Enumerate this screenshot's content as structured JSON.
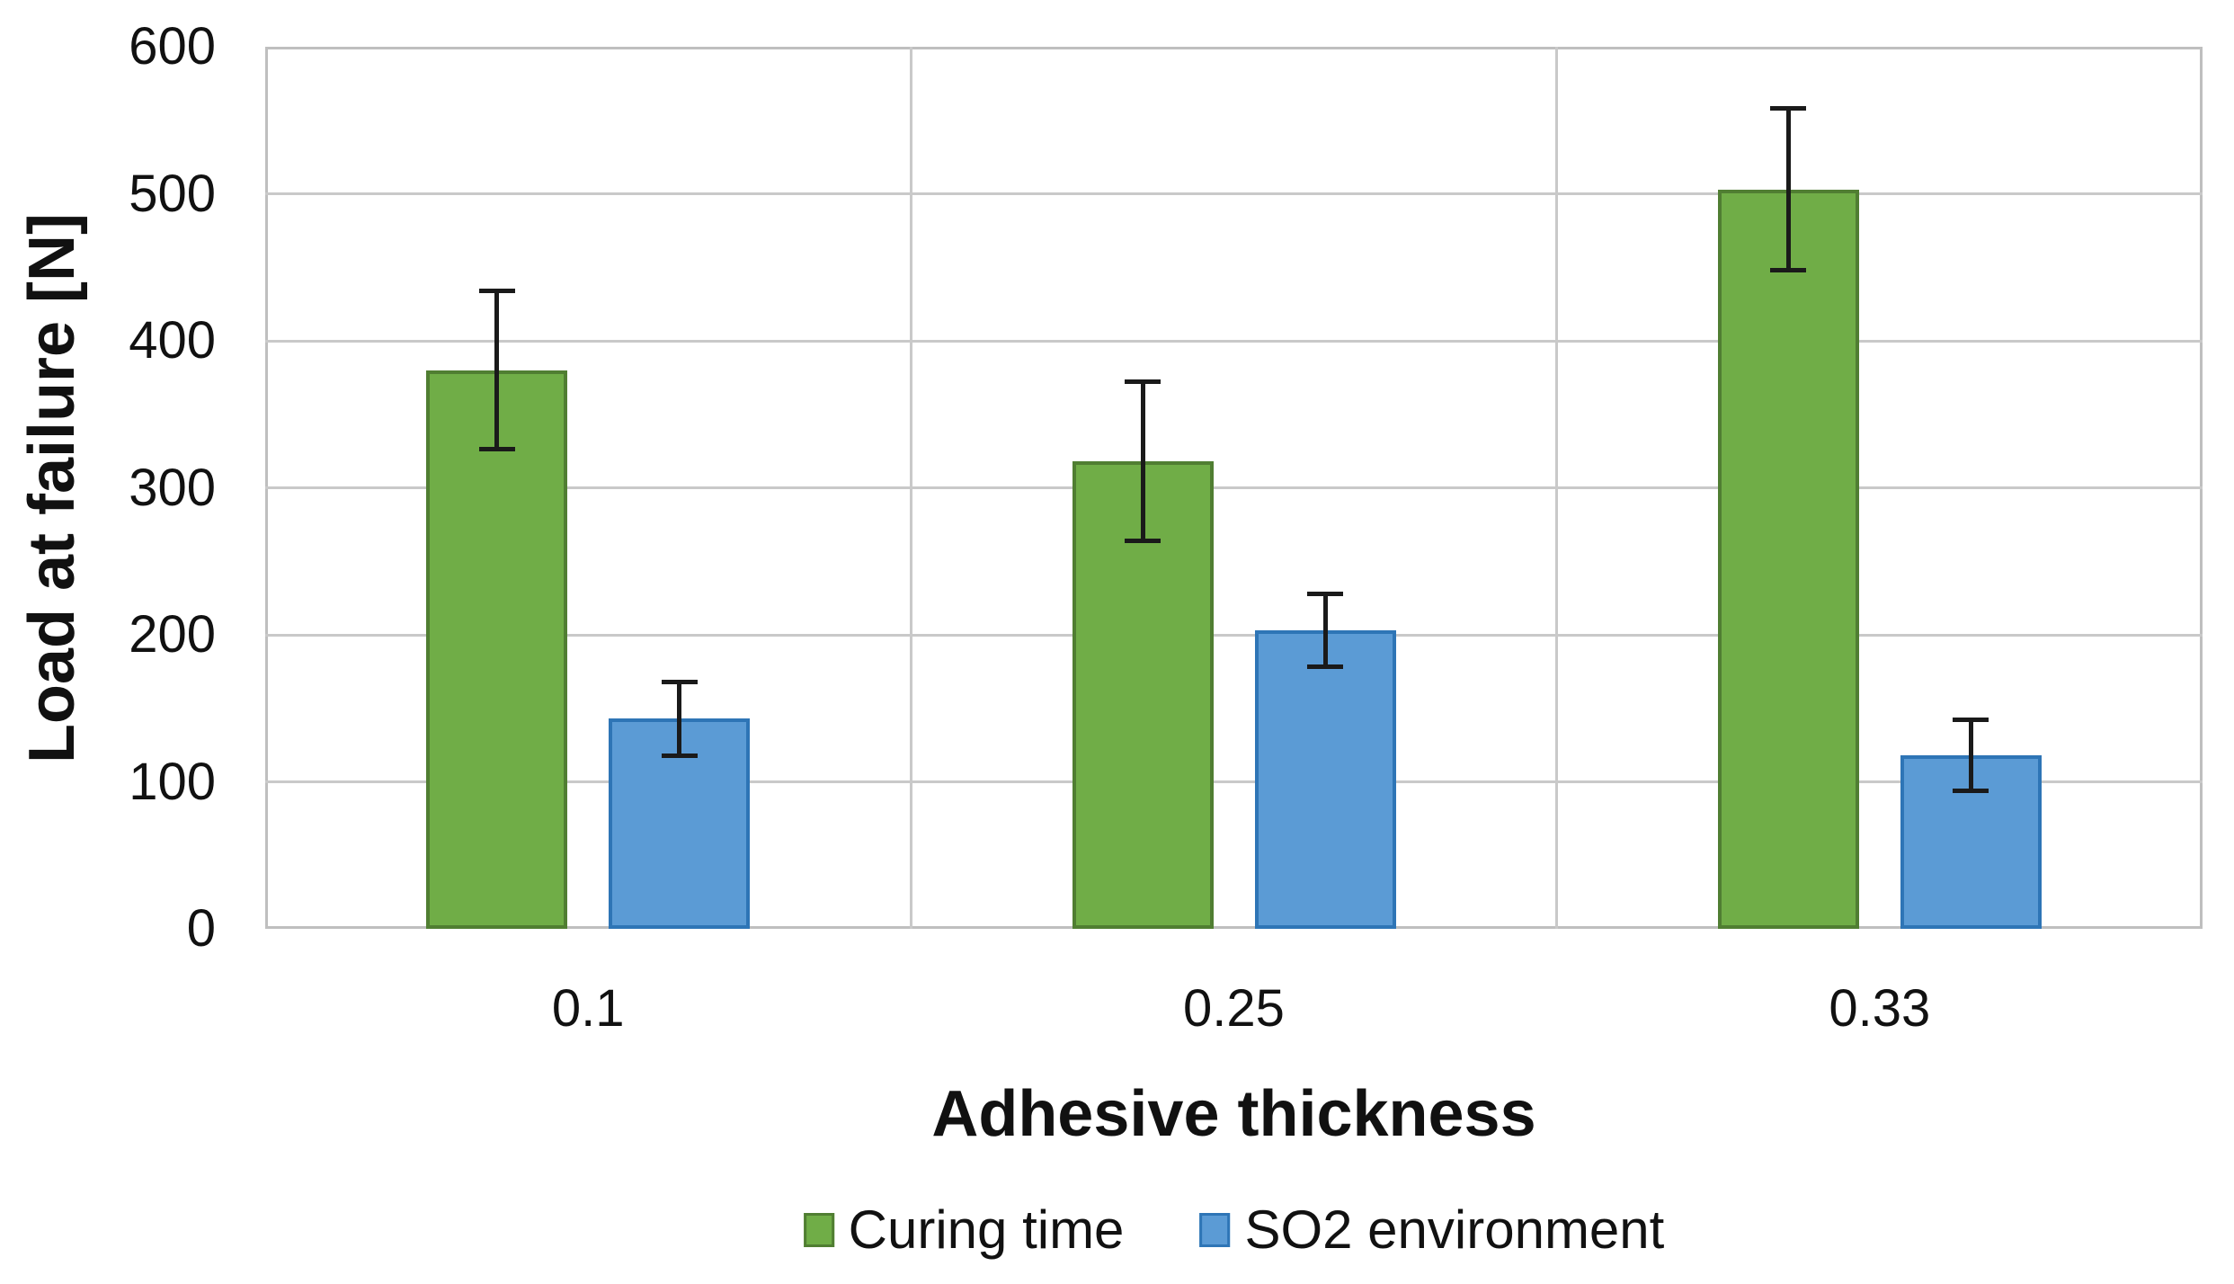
{
  "chart_data": {
    "type": "bar",
    "title": "",
    "xlabel": "Adhesive thickness",
    "ylabel": "Load at failure [N]",
    "categories": [
      "0.1",
      "0.25",
      "0.33"
    ],
    "series": [
      {
        "name": "Curing time",
        "fill_color": "#70AD47",
        "border_color": "#507E32",
        "values": [
          380,
          318,
          503
        ],
        "errors": [
          54,
          54,
          55
        ]
      },
      {
        "name": "SO2 environment",
        "fill_color": "#5B9BD5",
        "border_color": "#2E75B6",
        "values": [
          143,
          203,
          118
        ],
        "errors": [
          25,
          25,
          24
        ]
      }
    ],
    "ylim": [
      0,
      600
    ],
    "ytick_step": 100,
    "yticks": [
      "0",
      "100",
      "200",
      "300",
      "400",
      "500",
      "600"
    ],
    "grid": "horizontal gridlines + vertical category separators, full plot border",
    "legend_position": "bottom-center",
    "error_bar_color": "#1a1a1a",
    "gridline_color": "#c9c9c9",
    "background_color": "#ffffff"
  }
}
